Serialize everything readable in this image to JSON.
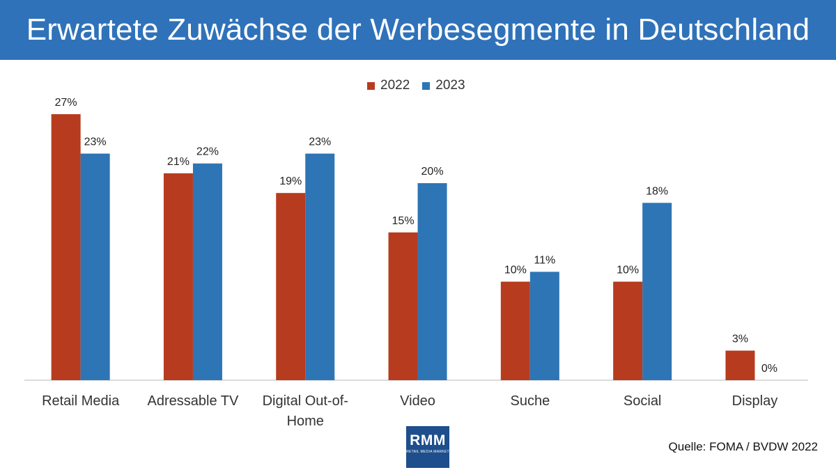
{
  "header": {
    "title": "Erwartete Zuwächse der Werbesegmente in Deutschland"
  },
  "legend": {
    "items": [
      "2022",
      "2023"
    ]
  },
  "logo": {
    "text": "RMM",
    "subtext": "RETAIL MEDIA MARKET"
  },
  "source": "Quelle: FOMA / BVDW 2022",
  "colors": {
    "2022": "#b73b1e",
    "2023": "#2e75b6",
    "header": "#2f72b9"
  },
  "chart_data": {
    "type": "bar",
    "title": "Erwartete Zuwächse der Werbesegmente in Deutschland",
    "categories": [
      [
        "Retail Media"
      ],
      [
        "Adressable TV"
      ],
      [
        "Digital Out-of-",
        "Home"
      ],
      [
        "Video"
      ],
      [
        "Suche"
      ],
      [
        "Social"
      ],
      [
        "Display"
      ]
    ],
    "series": [
      {
        "name": "2022",
        "values": [
          27,
          21,
          19,
          15,
          10,
          10,
          3
        ],
        "labels": [
          "27%",
          "21%",
          "19%",
          "15%",
          "10%",
          "10%",
          "3%"
        ]
      },
      {
        "name": "2023",
        "values": [
          23,
          22,
          23,
          20,
          11,
          18,
          0
        ],
        "labels": [
          "23%",
          "22%",
          "23%",
          "20%",
          "11%",
          "18%",
          "0%"
        ]
      }
    ],
    "ylim": [
      0,
      27
    ],
    "legend_position": "top-center",
    "grid": false,
    "xlabel": "",
    "ylabel": ""
  }
}
